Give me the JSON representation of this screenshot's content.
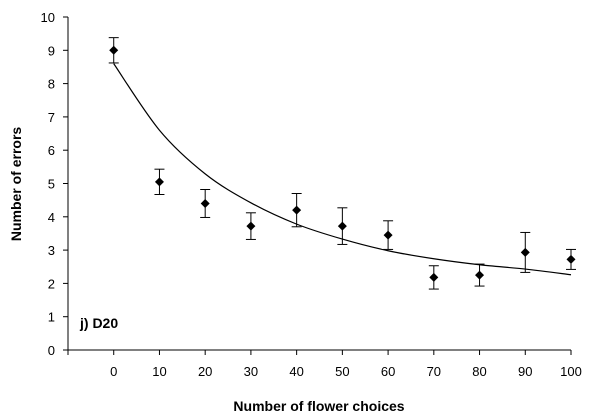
{
  "chart_data": {
    "type": "scatter",
    "panel_label": "j) D20",
    "xlabel": "Number of flower choices",
    "ylabel": "Number of errors",
    "xlim": [
      -10,
      100
    ],
    "ylim": [
      0,
      10
    ],
    "x_ticks": [
      0,
      10,
      20,
      30,
      40,
      50,
      60,
      70,
      80,
      90,
      100
    ],
    "y_ticks": [
      0,
      1,
      2,
      3,
      4,
      5,
      6,
      7,
      8,
      9,
      10
    ],
    "grid": false,
    "legend": "none",
    "series": [
      {
        "marker": "diamond",
        "color": "#000000",
        "x": [
          0,
          10,
          20,
          30,
          40,
          50,
          60,
          70,
          80,
          90,
          100
        ],
        "y": [
          9.0,
          5.05,
          4.4,
          3.72,
          4.2,
          3.72,
          3.45,
          2.18,
          2.25,
          2.93,
          2.72
        ],
        "error": [
          0.38,
          0.38,
          0.42,
          0.4,
          0.5,
          0.55,
          0.43,
          0.35,
          0.33,
          0.6,
          0.3
        ]
      }
    ],
    "trendline": {
      "type": "exponential",
      "x": [
        0,
        10,
        20,
        30,
        40,
        50,
        60,
        70,
        80,
        90,
        100
      ],
      "y": [
        8.6,
        6.6,
        5.29,
        4.42,
        3.78,
        3.33,
        2.98,
        2.74,
        2.56,
        2.43,
        2.26
      ]
    }
  }
}
